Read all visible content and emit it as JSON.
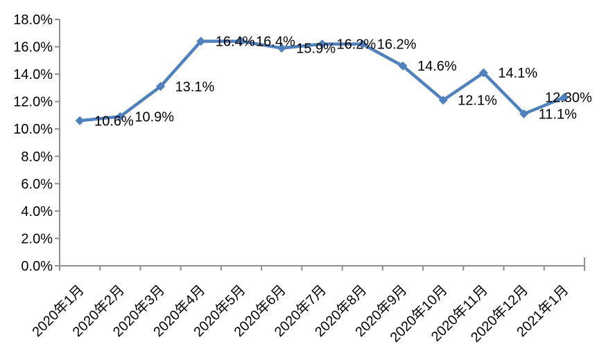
{
  "chart_data": {
    "type": "line",
    "title": "",
    "xlabel": "",
    "ylabel": "",
    "categories": [
      "2020年1月",
      "2020年2月",
      "2020年3月",
      "2020年4月",
      "2020年5月",
      "2020年6月",
      "2020年7月",
      "2020年8月",
      "2020年9月",
      "2020年10月",
      "2020年11月",
      "2020年12月",
      "2021年1月"
    ],
    "series": [
      {
        "name": "",
        "values": [
          10.6,
          10.9,
          13.1,
          16.4,
          16.4,
          15.9,
          16.2,
          16.2,
          14.6,
          12.1,
          14.1,
          11.1,
          12.3
        ],
        "data_labels": [
          "10.6%",
          "10.9%",
          "13.1%",
          "16.4%",
          "16.4%",
          "15.9%",
          "16.2%",
          "16.2%",
          "14.6%",
          "12.1%",
          "14.1%",
          "11.1%",
          "12.30%"
        ]
      }
    ],
    "y_tick_labels": [
      "0.0%",
      "2.0%",
      "4.0%",
      "6.0%",
      "8.0%",
      "10.0%",
      "12.0%",
      "14.0%",
      "16.0%",
      "18.0%"
    ],
    "ylim": [
      0,
      18
    ],
    "y_step": 2,
    "grid": false,
    "legend_position": "none",
    "marker_shape": "diamond",
    "colors": {
      "line": "#4f81bd",
      "marker": "#4f81bd",
      "axis": "#8f8f8f",
      "label_text": "#000000",
      "background": "#ffffff"
    }
  }
}
